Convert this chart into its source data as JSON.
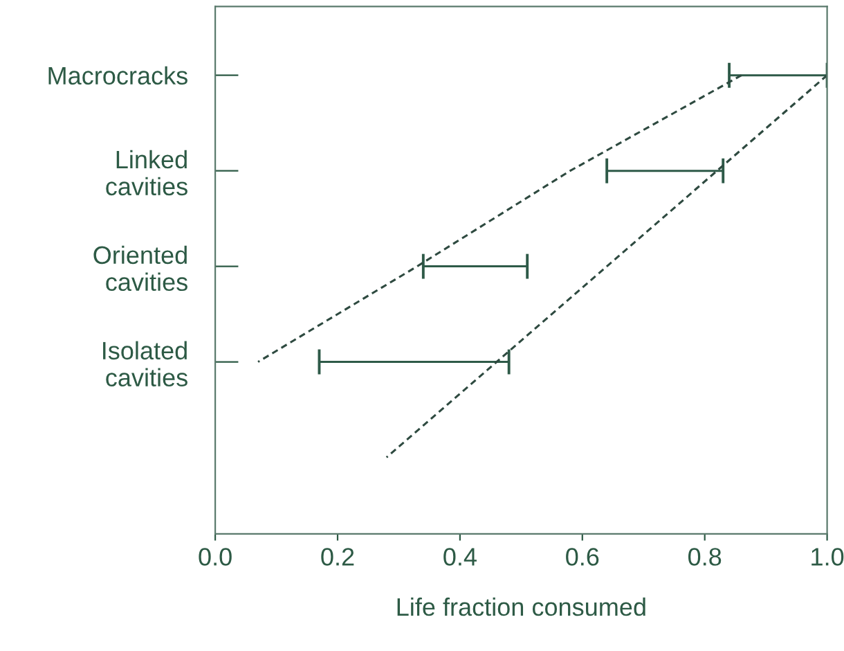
{
  "chart_data": {
    "type": "bar",
    "orientation": "horizontal",
    "xlabel": "Life fraction consumed",
    "categories": [
      "Macrocracks",
      "Linked\ncavities",
      "Oriented\ncavities",
      "Isolated\ncavities",
      null
    ],
    "xlim": [
      0.0,
      1.0
    ],
    "xticks": [
      {
        "value": 0.0,
        "label": "0.0"
      },
      {
        "value": 0.2,
        "label": "0.2"
      },
      {
        "value": 0.4,
        "label": "0.4"
      },
      {
        "value": 0.6,
        "label": "0.6"
      },
      {
        "value": 0.8,
        "label": "0.8"
      },
      {
        "value": 1.0,
        "label": "1.0"
      }
    ],
    "grid": false,
    "legend": false,
    "series": [
      {
        "color": "#2e5a48",
        "base": [
          0.84,
          0.64,
          0.34,
          0.17,
          null
        ],
        "values": [
          0.16,
          0.19,
          0.17,
          0.31,
          null
        ]
      },
      {
        "type": "line",
        "line_style": "dashed",
        "color": "#2e4a40",
        "values": [
          0.86,
          0.58,
          0.33,
          0.07,
          null
        ]
      },
      {
        "type": "line",
        "line_style": "dashed",
        "color": "#2e4a40",
        "values": [
          1.0,
          0.82,
          0.64,
          0.46,
          0.28
        ]
      }
    ]
  }
}
